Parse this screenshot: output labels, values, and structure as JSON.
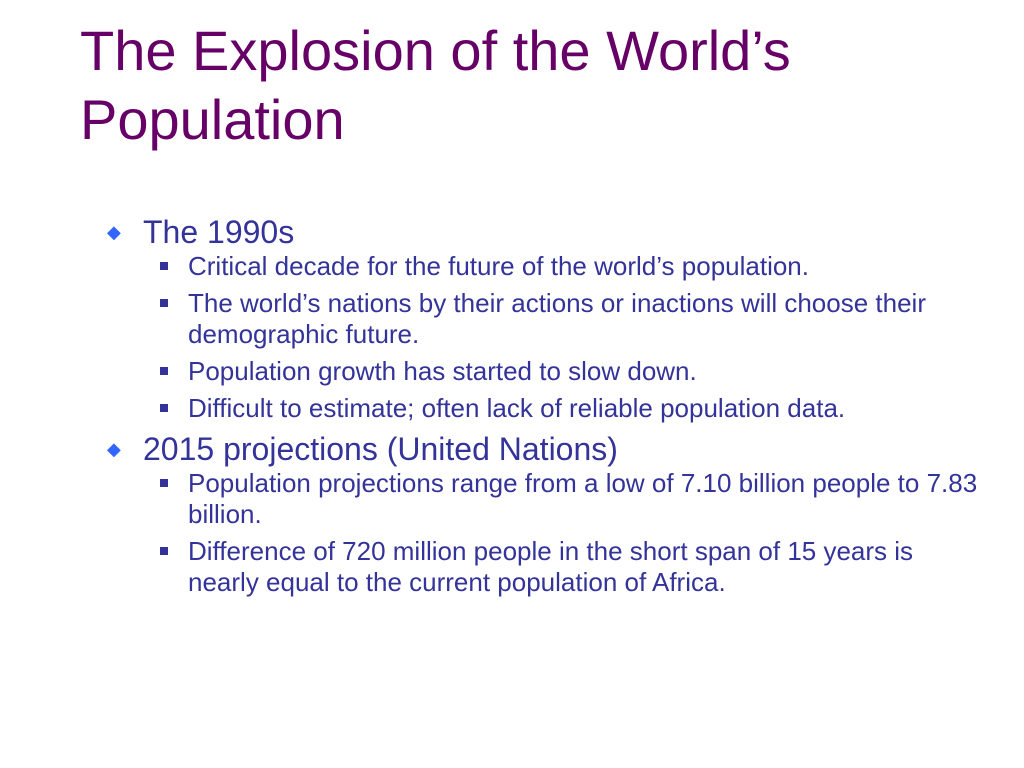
{
  "slide": {
    "title": "The Explosion of the World’s Population",
    "accent_colors": {
      "title": "#660066",
      "body_text": "#333399",
      "level1_bullet": "#3366ff",
      "level2_bullet": "#333399"
    },
    "bullets": [
      {
        "text": "The 1990s",
        "icon": "diamond-bullet-icon",
        "sub": [
          "Critical decade for the future of the world’s population.",
          "The world’s nations by their actions or inactions will choose their demographic future.",
          "Population growth has started to slow down.",
          "Difficult to estimate; often lack of reliable population data."
        ]
      },
      {
        "text": "2015 projections (United Nations)",
        "icon": "diamond-bullet-icon",
        "sub": [
          "Population projections range from a low of 7.10 billion people to 7.83 billion.",
          "Difference of 720 million people in the short span of 15 years is nearly equal to the current population of Africa."
        ]
      }
    ]
  }
}
